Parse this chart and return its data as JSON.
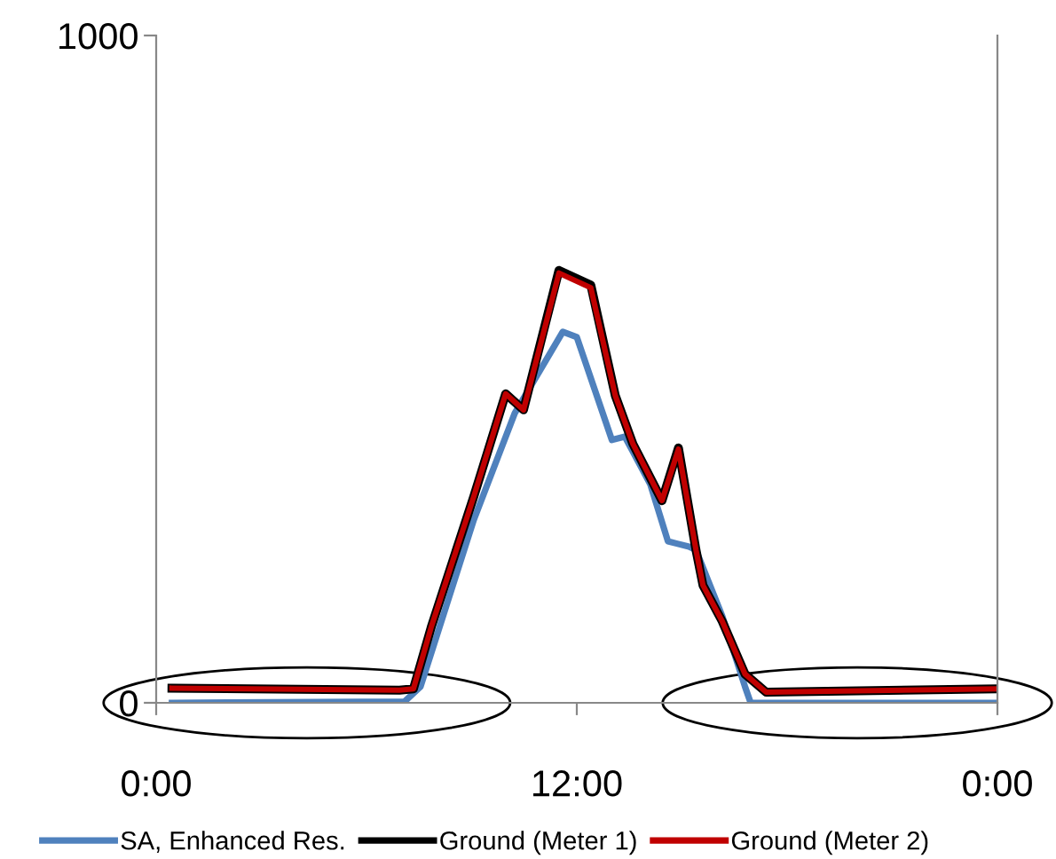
{
  "chart_data": {
    "type": "line",
    "xlim": [
      0,
      24
    ],
    "xticks": [
      {
        "value": 0,
        "label": "0:00"
      },
      {
        "value": 12,
        "label": "12:00"
      },
      {
        "value": 24,
        "label": "0:00"
      }
    ],
    "ylim": [
      0,
      1000
    ],
    "yticks": [
      0,
      1000
    ],
    "grid": false,
    "legend": "bottom",
    "marker": "none",
    "line_style": "solid",
    "series": [
      {
        "name": "SA, Enhanced Res.",
        "color": "#4f81bd",
        "x": [
          0.45,
          7.09,
          7.54,
          9.06,
          10.23,
          11.6,
          12.0,
          13.0,
          13.37,
          14.1,
          14.6,
          15.2,
          15.4,
          16.15,
          16.8,
          16.96,
          24
        ],
        "values": [
          0,
          2,
          24,
          274,
          434,
          556,
          548,
          394,
          399,
          327,
          242,
          234,
          229,
          130,
          24,
          0,
          0
        ]
      },
      {
        "name": "Ground (Meter 1)",
        "color": "#000000",
        "x": [
          0.45,
          6.94,
          7.34,
          7.85,
          9.06,
          9.97,
          10.48,
          11.49,
          12.4,
          13.1,
          13.6,
          14.43,
          14.9,
          15.4,
          15.6,
          16.15,
          16.8,
          17.4,
          24
        ],
        "values": [
          22,
          19,
          21,
          114,
          309,
          463,
          439,
          648,
          626,
          460,
          388,
          303,
          382,
          229,
          176,
          122,
          43,
          16,
          21
        ]
      },
      {
        "name": "Ground (Meter 2)",
        "color": "#c00000",
        "x": [
          0.45,
          6.94,
          7.34,
          7.85,
          9.06,
          9.97,
          10.48,
          11.49,
          12.4,
          13.1,
          13.6,
          14.43,
          14.9,
          15.4,
          15.6,
          16.15,
          16.8,
          17.4,
          24
        ],
        "values": [
          22,
          19,
          21,
          114,
          309,
          463,
          439,
          644,
          622,
          460,
          388,
          303,
          380,
          229,
          176,
          122,
          43,
          16,
          21
        ]
      }
    ]
  }
}
